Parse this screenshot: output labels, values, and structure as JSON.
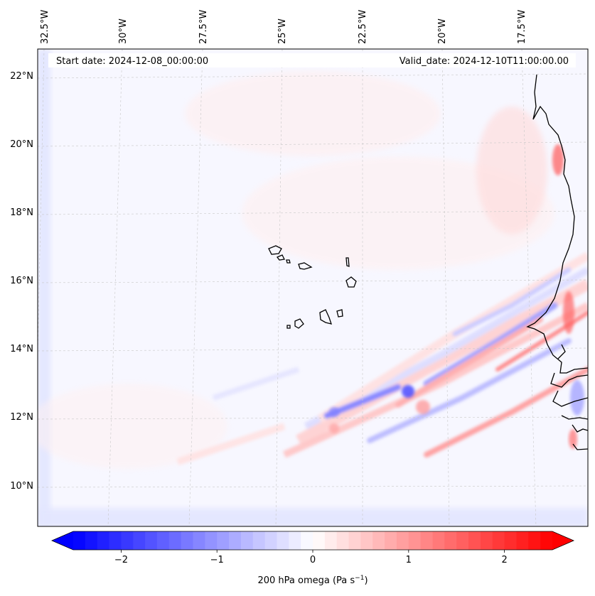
{
  "header": {
    "start_date": "Start date: 2024-12-08_00:00:00",
    "valid_date": "Valid_date: 2024-12-10T11:00:00.00"
  },
  "lon_labels": [
    "32.5°W",
    "30°W",
    "27.5°W",
    "25°W",
    "22.5°W",
    "20°W",
    "17.5°W"
  ],
  "lat_labels": [
    "22°N",
    "20°N",
    "18°N",
    "16°N",
    "14°N",
    "12°N",
    "10°N"
  ],
  "colorbar": {
    "label": "200 hPa omega (Pa s",
    "label_exp": "−1",
    "label_close": ")",
    "ticks": [
      "−2",
      "−1",
      "0",
      "1",
      "2"
    ],
    "min": -2.5,
    "max": 2.5,
    "colormap": "bwr",
    "low_color": "#0000ff",
    "mid_color": "#ffffff",
    "high_color": "#ff0000",
    "extend": "both"
  },
  "field": {
    "variable": "200 hPa omega",
    "units": "Pa s^-1"
  },
  "map_colors": {
    "coastline": "#000000",
    "gridline": "#c8c8c8",
    "background": "#f7f7ff"
  }
}
